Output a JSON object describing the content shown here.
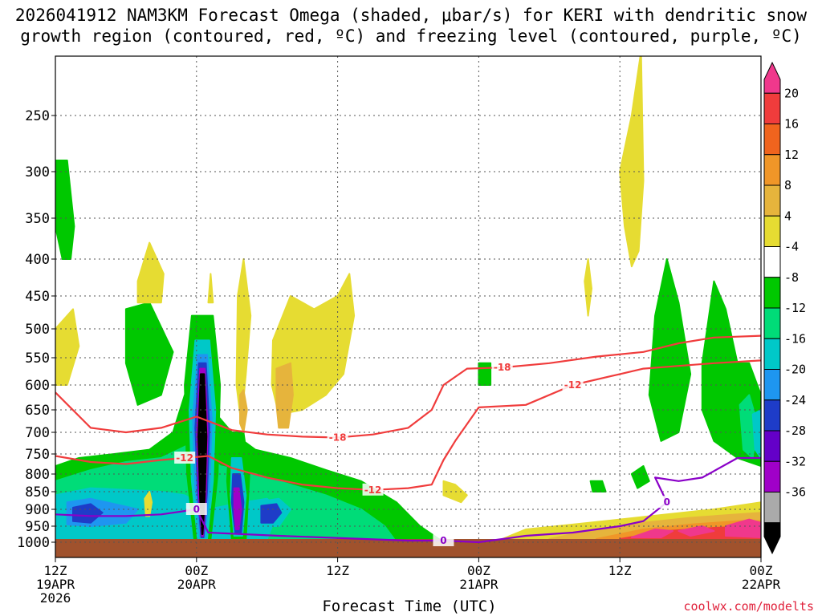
{
  "title": {
    "line1": "2026041912 NAM3KM Forecast Omega (shaded, μbar/s) for KERI with dendritic snow",
    "line2": "growth region (contoured, red, ºC) and freezing level (contoured, purple, ºC)"
  },
  "credit": "coolwx.com/modelts",
  "chart_data": {
    "type": "heatmap",
    "title": "2026041912 NAM3KM Forecast Omega (shaded, μbar/s) for KERI with dendritic snow growth region (contoured, red, ºC) and freezing level (contoured, purple, ºC)",
    "xlabel": "Forecast Time (UTC)",
    "ylabel": "",
    "x_ticks": [
      {
        "hour": 0,
        "lines": [
          "12Z",
          "19APR",
          "2026"
        ]
      },
      {
        "hour": 12,
        "lines": [
          "00Z",
          "20APR"
        ]
      },
      {
        "hour": 24,
        "lines": [
          "12Z"
        ]
      },
      {
        "hour": 36,
        "lines": [
          "00Z",
          "21APR"
        ]
      },
      {
        "hour": 48,
        "lines": [
          "12Z"
        ]
      },
      {
        "hour": 60,
        "lines": [
          "00Z",
          "22APR"
        ]
      }
    ],
    "xlim": [
      0,
      60
    ],
    "y_ticks": [
      250,
      300,
      350,
      400,
      450,
      500,
      550,
      600,
      650,
      700,
      750,
      800,
      850,
      900,
      950,
      1000
    ],
    "ylim": [
      1000,
      200
    ],
    "grid": true,
    "colorbar": {
      "unit": "μbar/s",
      "tick_labels": [
        "20",
        "16",
        "12",
        "8",
        "4",
        "-4",
        "-8",
        "-12",
        "-16",
        "-20",
        "-24",
        "-28",
        "-32",
        "-36"
      ],
      "colors": [
        "#f0388c",
        "#f03c3c",
        "#f0641e",
        "#f09628",
        "#e6b43c",
        "#e6dc32",
        "#ffffff",
        "#00c800",
        "#00dc78",
        "#00c8c8",
        "#1e96f0",
        "#1e3cc8",
        "#6400c8",
        "#a000c8",
        "#aaaaaa",
        "#000000"
      ]
    },
    "omega_regions": [
      {
        "value": -40,
        "color": "#000000",
        "hour": 12.5,
        "p": [
          580,
          990
        ]
      },
      {
        "value": -28,
        "color": "#a000c8",
        "hour": 15.5,
        "p": [
          870,
          960
        ]
      },
      {
        "value": -20,
        "color": "#1e3cc8",
        "hour": 1.5,
        "p": [
          880,
          950
        ]
      },
      {
        "value": -10,
        "color": "#00dc78",
        "hour": 4,
        "p": [
          780,
          1000
        ]
      },
      {
        "value": -6,
        "color": "#00c800",
        "hour": 2,
        "p": [
          280,
          400
        ]
      },
      {
        "value": 6,
        "color": "#e6dc32",
        "hour": 20,
        "p": [
          460,
          680
        ]
      },
      {
        "value": 10,
        "color": "#e6b43c",
        "hour": 18.5,
        "p": [
          570,
          690
        ]
      },
      {
        "value": 6,
        "color": "#e6dc32",
        "hour": 48.5,
        "p": [
          220,
          410
        ]
      },
      {
        "value": 10,
        "color": "#f09628",
        "hour": 53,
        "p": [
          880,
          990
        ]
      },
      {
        "value": 20,
        "color": "#f0388c",
        "hour": 55,
        "p": [
          920,
          975
        ]
      }
    ],
    "series": [
      {
        "name": "-18",
        "color": "#f03c3c",
        "points": [
          [
            0,
            615
          ],
          [
            3,
            690
          ],
          [
            6,
            700
          ],
          [
            9,
            690
          ],
          [
            12,
            665
          ],
          [
            15,
            695
          ],
          [
            18,
            705
          ],
          [
            21,
            710
          ],
          [
            24,
            712
          ],
          [
            27,
            705
          ],
          [
            30,
            690
          ],
          [
            32,
            650
          ],
          [
            33,
            600
          ],
          [
            35,
            570
          ],
          [
            38,
            568
          ],
          [
            42,
            560
          ],
          [
            46,
            548
          ],
          [
            50,
            540
          ],
          [
            53,
            525
          ],
          [
            56,
            515
          ],
          [
            60,
            512
          ]
        ]
      },
      {
        "name": "-12",
        "color": "#f03c3c",
        "points": [
          [
            0,
            755
          ],
          [
            3,
            770
          ],
          [
            6,
            775
          ],
          [
            9,
            765
          ],
          [
            11,
            760
          ],
          [
            13,
            755
          ],
          [
            15,
            785
          ],
          [
            18,
            810
          ],
          [
            21,
            830
          ],
          [
            24,
            840
          ],
          [
            27,
            845
          ],
          [
            30,
            840
          ],
          [
            32,
            830
          ],
          [
            33,
            765
          ],
          [
            34,
            720
          ],
          [
            36,
            645
          ],
          [
            40,
            640
          ],
          [
            44,
            600
          ],
          [
            48,
            580
          ],
          [
            50,
            570
          ],
          [
            53,
            565
          ],
          [
            56,
            560
          ],
          [
            60,
            555
          ]
        ]
      },
      {
        "name": "0",
        "color": "#8a00c8",
        "points": [
          [
            0,
            915
          ],
          [
            3,
            920
          ],
          [
            6,
            920
          ],
          [
            9,
            915
          ],
          [
            12,
            900
          ],
          [
            13,
            970
          ],
          [
            16,
            975
          ],
          [
            19,
            980
          ],
          [
            30,
            995
          ],
          [
            33,
            995
          ],
          [
            36,
            1000
          ],
          [
            40,
            980
          ],
          [
            44,
            970
          ],
          [
            48,
            950
          ],
          [
            50,
            935
          ],
          [
            52,
            880
          ],
          [
            51,
            810
          ],
          [
            53,
            820
          ],
          [
            55,
            810
          ],
          [
            58,
            760
          ],
          [
            60,
            760
          ]
        ]
      }
    ]
  },
  "labels": {
    "x_title": "Forecast Time (UTC)"
  }
}
